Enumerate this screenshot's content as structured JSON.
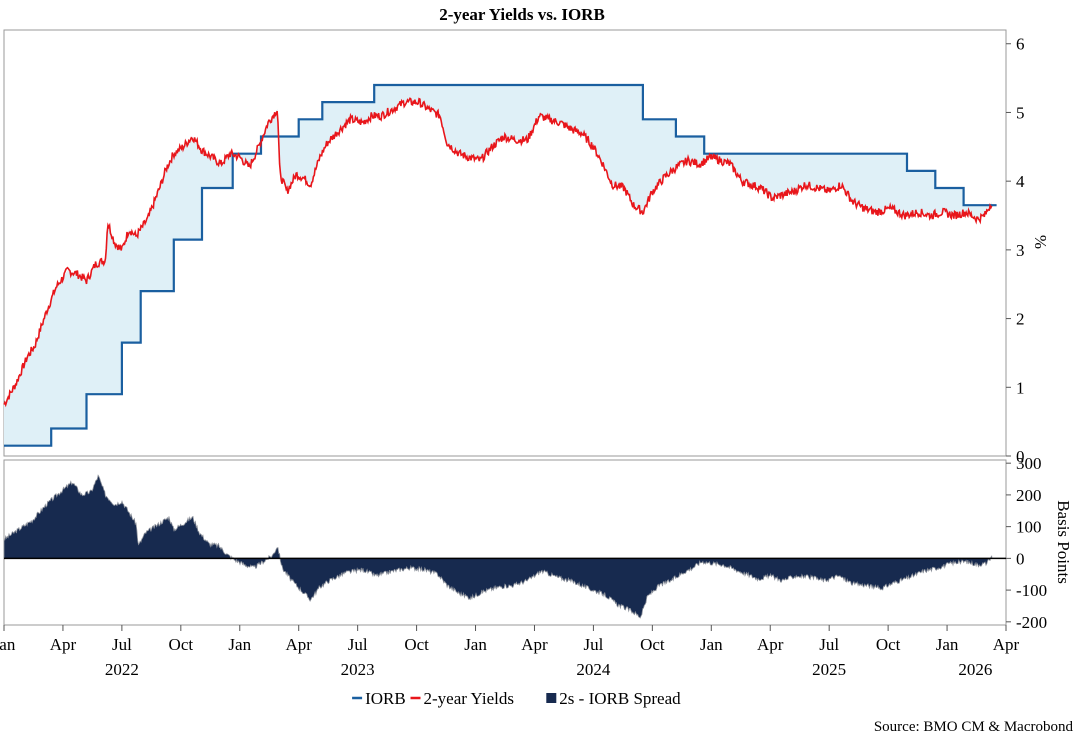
{
  "chart_data": {
    "type": "line",
    "title": "2-year Yields vs. IORB",
    "source": "Source: BMO CM & Macrobond",
    "top_panel": {
      "ylabel": "%",
      "ylim": [
        0,
        6.2
      ],
      "yticks": [
        0,
        1,
        2,
        3,
        4,
        5,
        6
      ],
      "series": [
        {
          "name": "IORB",
          "color": "#1a5fa0",
          "type": "step",
          "points": [
            [
              2022.0,
              0.15
            ],
            [
              2022.2,
              0.4
            ],
            [
              2022.35,
              0.9
            ],
            [
              2022.5,
              1.65
            ],
            [
              2022.58,
              2.4
            ],
            [
              2022.72,
              3.15
            ],
            [
              2022.84,
              3.9
            ],
            [
              2022.97,
              4.4
            ],
            [
              2023.09,
              4.65
            ],
            [
              2023.25,
              4.9
            ],
            [
              2023.35,
              5.15
            ],
            [
              2023.57,
              5.4
            ],
            [
              2024.71,
              4.9
            ],
            [
              2024.85,
              4.65
            ],
            [
              2024.97,
              4.4
            ],
            [
              2025.7,
              4.4
            ],
            [
              2025.83,
              4.15
            ],
            [
              2025.95,
              3.9
            ],
            [
              2026.07,
              3.65
            ],
            [
              2026.21,
              3.65
            ]
          ]
        },
        {
          "name": "2-year Yields",
          "color": "#e8161b",
          "type": "line",
          "points": [
            [
              2022.0,
              0.75
            ],
            [
              2022.05,
              1.05
            ],
            [
              2022.1,
              1.45
            ],
            [
              2022.13,
              1.6
            ],
            [
              2022.18,
              2.1
            ],
            [
              2022.22,
              2.45
            ],
            [
              2022.27,
              2.7
            ],
            [
              2022.31,
              2.65
            ],
            [
              2022.35,
              2.55
            ],
            [
              2022.39,
              2.8
            ],
            [
              2022.43,
              2.85
            ],
            [
              2022.44,
              3.4
            ],
            [
              2022.47,
              3.1
            ],
            [
              2022.5,
              3.0
            ],
            [
              2022.53,
              3.3
            ],
            [
              2022.56,
              3.2
            ],
            [
              2022.61,
              3.45
            ],
            [
              2022.66,
              3.9
            ],
            [
              2022.69,
              4.2
            ],
            [
              2022.72,
              4.4
            ],
            [
              2022.76,
              4.5
            ],
            [
              2022.8,
              4.65
            ],
            [
              2022.84,
              4.45
            ],
            [
              2022.88,
              4.35
            ],
            [
              2022.92,
              4.25
            ],
            [
              2022.96,
              4.4
            ],
            [
              2023.0,
              4.35
            ],
            [
              2023.04,
              4.2
            ],
            [
              2023.08,
              4.5
            ],
            [
              2023.12,
              4.85
            ],
            [
              2023.16,
              5.05
            ],
            [
              2023.17,
              4.1
            ],
            [
              2023.2,
              3.85
            ],
            [
              2023.24,
              4.1
            ],
            [
              2023.27,
              4.05
            ],
            [
              2023.3,
              3.95
            ],
            [
              2023.34,
              4.35
            ],
            [
              2023.37,
              4.55
            ],
            [
              2023.41,
              4.7
            ],
            [
              2023.47,
              4.9
            ],
            [
              2023.52,
              4.85
            ],
            [
              2023.56,
              4.95
            ],
            [
              2023.6,
              4.95
            ],
            [
              2023.65,
              5.05
            ],
            [
              2023.7,
              5.15
            ],
            [
              2023.76,
              5.15
            ],
            [
              2023.8,
              5.05
            ],
            [
              2023.85,
              4.95
            ],
            [
              2023.88,
              4.55
            ],
            [
              2023.93,
              4.4
            ],
            [
              2023.97,
              4.35
            ],
            [
              2024.02,
              4.3
            ],
            [
              2024.07,
              4.5
            ],
            [
              2024.12,
              4.65
            ],
            [
              2024.17,
              4.6
            ],
            [
              2024.22,
              4.6
            ],
            [
              2024.27,
              4.95
            ],
            [
              2024.31,
              4.9
            ],
            [
              2024.36,
              4.85
            ],
            [
              2024.41,
              4.75
            ],
            [
              2024.45,
              4.7
            ],
            [
              2024.5,
              4.5
            ],
            [
              2024.54,
              4.25
            ],
            [
              2024.58,
              3.95
            ],
            [
              2024.63,
              3.9
            ],
            [
              2024.67,
              3.65
            ],
            [
              2024.71,
              3.55
            ],
            [
              2024.75,
              3.85
            ],
            [
              2024.8,
              4.05
            ],
            [
              2024.85,
              4.2
            ],
            [
              2024.9,
              4.3
            ],
            [
              2024.95,
              4.25
            ],
            [
              2025.0,
              4.35
            ],
            [
              2025.04,
              4.3
            ],
            [
              2025.08,
              4.25
            ],
            [
              2025.13,
              4.0
            ],
            [
              2025.17,
              3.95
            ],
            [
              2025.21,
              3.9
            ],
            [
              2025.26,
              3.75
            ],
            [
              2025.3,
              3.8
            ],
            [
              2025.35,
              3.85
            ],
            [
              2025.4,
              3.95
            ],
            [
              2025.45,
              3.9
            ],
            [
              2025.5,
              3.85
            ],
            [
              2025.55,
              3.95
            ],
            [
              2025.6,
              3.7
            ],
            [
              2025.65,
              3.6
            ],
            [
              2025.7,
              3.55
            ],
            [
              2025.76,
              3.6
            ],
            [
              2025.82,
              3.5
            ],
            [
              2025.88,
              3.55
            ],
            [
              2025.93,
              3.5
            ],
            [
              2025.98,
              3.55
            ],
            [
              2026.03,
              3.5
            ],
            [
              2026.08,
              3.55
            ],
            [
              2026.13,
              3.45
            ],
            [
              2026.16,
              3.5
            ],
            [
              2026.19,
              3.7
            ]
          ]
        }
      ]
    },
    "bottom_panel": {
      "ylabel": "Basis Points",
      "ylim": [
        -210,
        310
      ],
      "yticks": [
        -200,
        -100,
        0,
        100,
        200,
        300
      ],
      "series": [
        {
          "name": "2s - IORB Spread",
          "color": "#172a4f",
          "type": "area",
          "points": [
            [
              2022.0,
              60
            ],
            [
              2022.06,
              90
            ],
            [
              2022.12,
              120
            ],
            [
              2022.18,
              170
            ],
            [
              2022.24,
              210
            ],
            [
              2022.29,
              240
            ],
            [
              2022.33,
              200
            ],
            [
              2022.37,
              210
            ],
            [
              2022.4,
              260
            ],
            [
              2022.43,
              200
            ],
            [
              2022.47,
              170
            ],
            [
              2022.5,
              180
            ],
            [
              2022.56,
              110
            ],
            [
              2022.57,
              40
            ],
            [
              2022.6,
              80
            ],
            [
              2022.64,
              100
            ],
            [
              2022.7,
              130
            ],
            [
              2022.72,
              90
            ],
            [
              2022.76,
              110
            ],
            [
              2022.8,
              130
            ],
            [
              2022.83,
              80
            ],
            [
              2022.87,
              45
            ],
            [
              2022.91,
              40
            ],
            [
              2022.95,
              10
            ],
            [
              2022.98,
              -5
            ],
            [
              2023.02,
              -20
            ],
            [
              2023.06,
              -30
            ],
            [
              2023.1,
              -10
            ],
            [
              2023.14,
              10
            ],
            [
              2023.16,
              40
            ],
            [
              2023.18,
              -30
            ],
            [
              2023.22,
              -70
            ],
            [
              2023.26,
              -100
            ],
            [
              2023.3,
              -130
            ],
            [
              2023.34,
              -90
            ],
            [
              2023.38,
              -70
            ],
            [
              2023.45,
              -45
            ],
            [
              2023.52,
              -35
            ],
            [
              2023.58,
              -55
            ],
            [
              2023.65,
              -40
            ],
            [
              2023.72,
              -30
            ],
            [
              2023.78,
              -35
            ],
            [
              2023.84,
              -50
            ],
            [
              2023.88,
              -85
            ],
            [
              2023.93,
              -110
            ],
            [
              2023.98,
              -125
            ],
            [
              2024.03,
              -105
            ],
            [
              2024.1,
              -90
            ],
            [
              2024.16,
              -85
            ],
            [
              2024.22,
              -70
            ],
            [
              2024.28,
              -40
            ],
            [
              2024.35,
              -60
            ],
            [
              2024.42,
              -75
            ],
            [
              2024.48,
              -95
            ],
            [
              2024.55,
              -115
            ],
            [
              2024.6,
              -145
            ],
            [
              2024.66,
              -165
            ],
            [
              2024.7,
              -185
            ],
            [
              2024.73,
              -120
            ],
            [
              2024.78,
              -85
            ],
            [
              2024.83,
              -70
            ],
            [
              2024.88,
              -45
            ],
            [
              2024.92,
              -30
            ],
            [
              2024.96,
              -10
            ],
            [
              2025.0,
              -15
            ],
            [
              2025.05,
              -20
            ],
            [
              2025.1,
              -35
            ],
            [
              2025.15,
              -50
            ],
            [
              2025.2,
              -65
            ],
            [
              2025.25,
              -55
            ],
            [
              2025.3,
              -70
            ],
            [
              2025.36,
              -55
            ],
            [
              2025.42,
              -60
            ],
            [
              2025.48,
              -70
            ],
            [
              2025.54,
              -55
            ],
            [
              2025.6,
              -80
            ],
            [
              2025.66,
              -85
            ],
            [
              2025.72,
              -95
            ],
            [
              2025.78,
              -75
            ],
            [
              2025.84,
              -60
            ],
            [
              2025.9,
              -40
            ],
            [
              2025.96,
              -30
            ],
            [
              2026.02,
              -15
            ],
            [
              2026.08,
              -10
            ],
            [
              2026.13,
              -20
            ],
            [
              2026.17,
              -15
            ],
            [
              2026.19,
              5
            ]
          ]
        }
      ]
    },
    "x_axis": {
      "range": [
        2022.0,
        2026.25
      ],
      "month_ticks": [
        {
          "x": 2022.0,
          "label": "Jan"
        },
        {
          "x": 2022.25,
          "label": "Apr"
        },
        {
          "x": 2022.5,
          "label": "Jul"
        },
        {
          "x": 2022.75,
          "label": "Oct"
        },
        {
          "x": 2023.0,
          "label": "Jan"
        },
        {
          "x": 2023.25,
          "label": "Apr"
        },
        {
          "x": 2023.5,
          "label": "Jul"
        },
        {
          "x": 2023.75,
          "label": "Oct"
        },
        {
          "x": 2024.0,
          "label": "Jan"
        },
        {
          "x": 2024.25,
          "label": "Apr"
        },
        {
          "x": 2024.5,
          "label": "Jul"
        },
        {
          "x": 2024.75,
          "label": "Oct"
        },
        {
          "x": 2025.0,
          "label": "Jan"
        },
        {
          "x": 2025.25,
          "label": "Apr"
        },
        {
          "x": 2025.5,
          "label": "Jul"
        },
        {
          "x": 2025.75,
          "label": "Oct"
        },
        {
          "x": 2026.0,
          "label": "Jan"
        },
        {
          "x": 2026.25,
          "label": "Apr"
        }
      ],
      "year_labels": [
        {
          "x": 2022.5,
          "label": "2022"
        },
        {
          "x": 2023.5,
          "label": "2023"
        },
        {
          "x": 2024.5,
          "label": "2024"
        },
        {
          "x": 2025.5,
          "label": "2025"
        },
        {
          "x": 2026.12,
          "label": "2026"
        }
      ]
    },
    "legend": [
      {
        "name": "IORB",
        "color": "#1a5fa0",
        "symbol": "line"
      },
      {
        "name": "2-year Yields",
        "color": "#e8161b",
        "symbol": "line"
      },
      {
        "name": "2s - IORB Spread",
        "color": "#172a4f",
        "symbol": "block"
      }
    ],
    "shaded_gap": {
      "fill": "#dff0f7",
      "between": [
        "IORB",
        "2-year Yields"
      ]
    }
  }
}
